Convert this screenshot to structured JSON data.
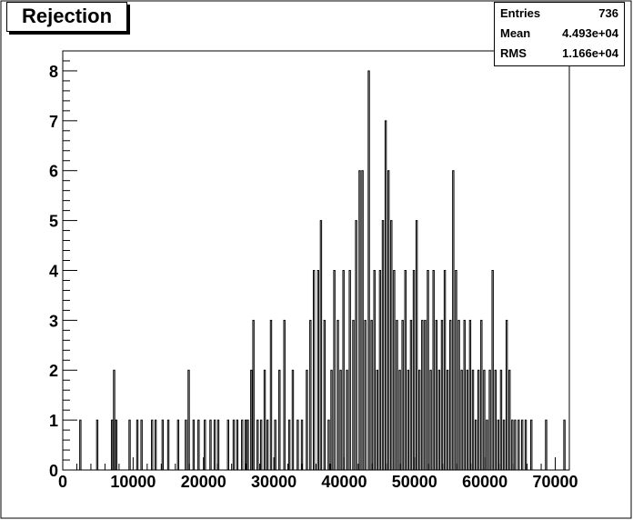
{
  "chart_data": {
    "type": "bar",
    "histogram": true,
    "title": "Rejection",
    "xlabel": "",
    "ylabel": "",
    "xlim": [
      0,
      72000
    ],
    "ylim": [
      0,
      8.4
    ],
    "xticks": [
      0,
      10000,
      20000,
      30000,
      40000,
      50000,
      60000,
      70000
    ],
    "xtick_labels": [
      "0",
      "10000",
      "20000",
      "30000",
      "40000",
      "50000",
      "60000",
      "70000"
    ],
    "yticks": [
      0,
      1,
      2,
      3,
      4,
      5,
      6,
      7,
      8
    ],
    "ytick_labels": [
      "0",
      "1",
      "2",
      "3",
      "4",
      "5",
      "6",
      "7",
      "8"
    ],
    "grid": false,
    "stats": {
      "entries_label": "Entries",
      "entries": "736",
      "mean_label": "Mean",
      "mean": "4.493e+04",
      "rms_label": "RMS",
      "rms": "1.166e+04"
    },
    "bin_width": 180,
    "points": [
      [
        2500,
        1
      ],
      [
        4900,
        1
      ],
      [
        7000,
        1
      ],
      [
        7300,
        2
      ],
      [
        7600,
        1
      ],
      [
        9500,
        1
      ],
      [
        10600,
        1
      ],
      [
        11200,
        1
      ],
      [
        12700,
        1
      ],
      [
        13200,
        1
      ],
      [
        14200,
        1
      ],
      [
        15000,
        1
      ],
      [
        16400,
        1
      ],
      [
        17500,
        1
      ],
      [
        17900,
        2
      ],
      [
        18600,
        1
      ],
      [
        19300,
        1
      ],
      [
        20200,
        1
      ],
      [
        21000,
        1
      ],
      [
        21600,
        1
      ],
      [
        22100,
        1
      ],
      [
        23500,
        1
      ],
      [
        24300,
        1
      ],
      [
        24800,
        1
      ],
      [
        25500,
        1
      ],
      [
        26000,
        1
      ],
      [
        26300,
        1
      ],
      [
        26800,
        2
      ],
      [
        27100,
        3
      ],
      [
        27700,
        1
      ],
      [
        28200,
        1
      ],
      [
        28700,
        2
      ],
      [
        29100,
        1
      ],
      [
        29600,
        3
      ],
      [
        30200,
        1
      ],
      [
        30800,
        2
      ],
      [
        31500,
        3
      ],
      [
        32200,
        1
      ],
      [
        32700,
        2
      ],
      [
        33400,
        1
      ],
      [
        34000,
        1
      ],
      [
        34700,
        2
      ],
      [
        35200,
        3
      ],
      [
        35700,
        4
      ],
      [
        36300,
        4
      ],
      [
        36700,
        5
      ],
      [
        37200,
        3
      ],
      [
        37800,
        1
      ],
      [
        38200,
        2
      ],
      [
        38600,
        4
      ],
      [
        39100,
        3
      ],
      [
        39500,
        2
      ],
      [
        39900,
        4
      ],
      [
        40400,
        2
      ],
      [
        40800,
        4
      ],
      [
        41300,
        3
      ],
      [
        41700,
        5
      ],
      [
        42200,
        6
      ],
      [
        42600,
        6
      ],
      [
        43000,
        3
      ],
      [
        43500,
        8
      ],
      [
        43900,
        3
      ],
      [
        44300,
        4
      ],
      [
        44700,
        2
      ],
      [
        45100,
        4
      ],
      [
        45500,
        5
      ],
      [
        45900,
        7
      ],
      [
        46300,
        6
      ],
      [
        46700,
        5
      ],
      [
        47100,
        4
      ],
      [
        47500,
        3
      ],
      [
        47900,
        2
      ],
      [
        48300,
        3
      ],
      [
        48700,
        4
      ],
      [
        49100,
        2
      ],
      [
        49500,
        3
      ],
      [
        49900,
        4
      ],
      [
        50300,
        5
      ],
      [
        50700,
        2
      ],
      [
        51100,
        3
      ],
      [
        51500,
        3
      ],
      [
        51900,
        4
      ],
      [
        52300,
        2
      ],
      [
        52700,
        4
      ],
      [
        53100,
        3
      ],
      [
        53500,
        2
      ],
      [
        53900,
        3
      ],
      [
        54300,
        4
      ],
      [
        54700,
        2
      ],
      [
        55100,
        3
      ],
      [
        55500,
        6
      ],
      [
        55900,
        4
      ],
      [
        56300,
        3
      ],
      [
        56700,
        2
      ],
      [
        57100,
        3
      ],
      [
        57500,
        2
      ],
      [
        57900,
        3
      ],
      [
        58300,
        2
      ],
      [
        58700,
        1
      ],
      [
        59100,
        2
      ],
      [
        59500,
        3
      ],
      [
        59900,
        2
      ],
      [
        60300,
        1
      ],
      [
        60700,
        2
      ],
      [
        61100,
        4
      ],
      [
        61500,
        2
      ],
      [
        61900,
        1
      ],
      [
        62300,
        2
      ],
      [
        62700,
        1
      ],
      [
        63100,
        3
      ],
      [
        63500,
        2
      ],
      [
        63900,
        1
      ],
      [
        64300,
        1
      ],
      [
        64800,
        1
      ],
      [
        65300,
        1
      ],
      [
        65800,
        1
      ],
      [
        66600,
        1
      ],
      [
        68700,
        1
      ],
      [
        71300,
        1
      ]
    ]
  }
}
